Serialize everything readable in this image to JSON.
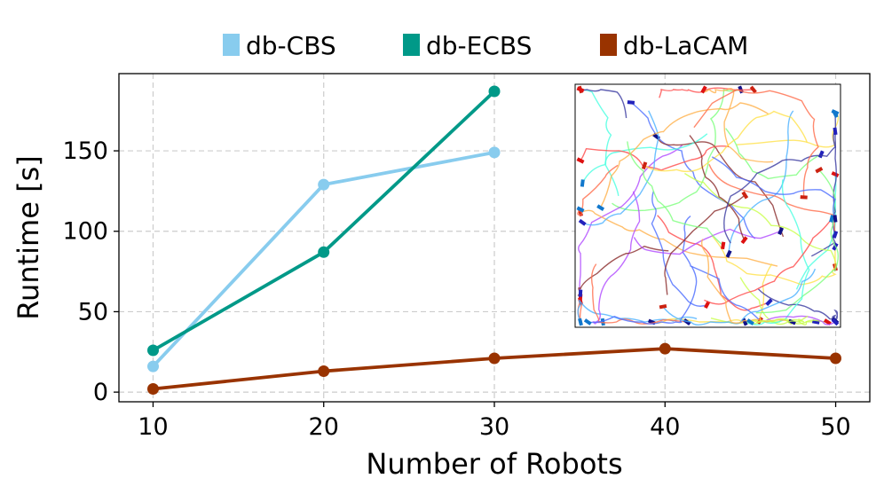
{
  "chart_data": {
    "type": "line",
    "xlabel": "Number of Robots",
    "ylabel": "Runtime [s]",
    "xlim": [
      8,
      52
    ],
    "ylim": [
      -6,
      198
    ],
    "xticks": [
      10,
      20,
      30,
      40,
      50
    ],
    "yticks": [
      0,
      50,
      100,
      150
    ],
    "grid": true,
    "legend": {
      "position": "top",
      "entries": [
        "db-CBS",
        "db-ECBS",
        "db-LaCAM"
      ]
    },
    "series": [
      {
        "name": "db-CBS",
        "color": "#88ccee",
        "x": [
          10,
          20,
          30
        ],
        "y": [
          16,
          129,
          149
        ]
      },
      {
        "name": "db-ECBS",
        "color": "#009988",
        "x": [
          10,
          20,
          30
        ],
        "y": [
          26,
          87,
          187
        ]
      },
      {
        "name": "db-LaCAM",
        "color": "#993300",
        "x": [
          10,
          20,
          30,
          40,
          50
        ],
        "y": [
          2,
          13,
          21,
          27,
          21
        ]
      }
    ],
    "inset": {
      "description_icon": "robot-trajectories-inset-image"
    }
  }
}
